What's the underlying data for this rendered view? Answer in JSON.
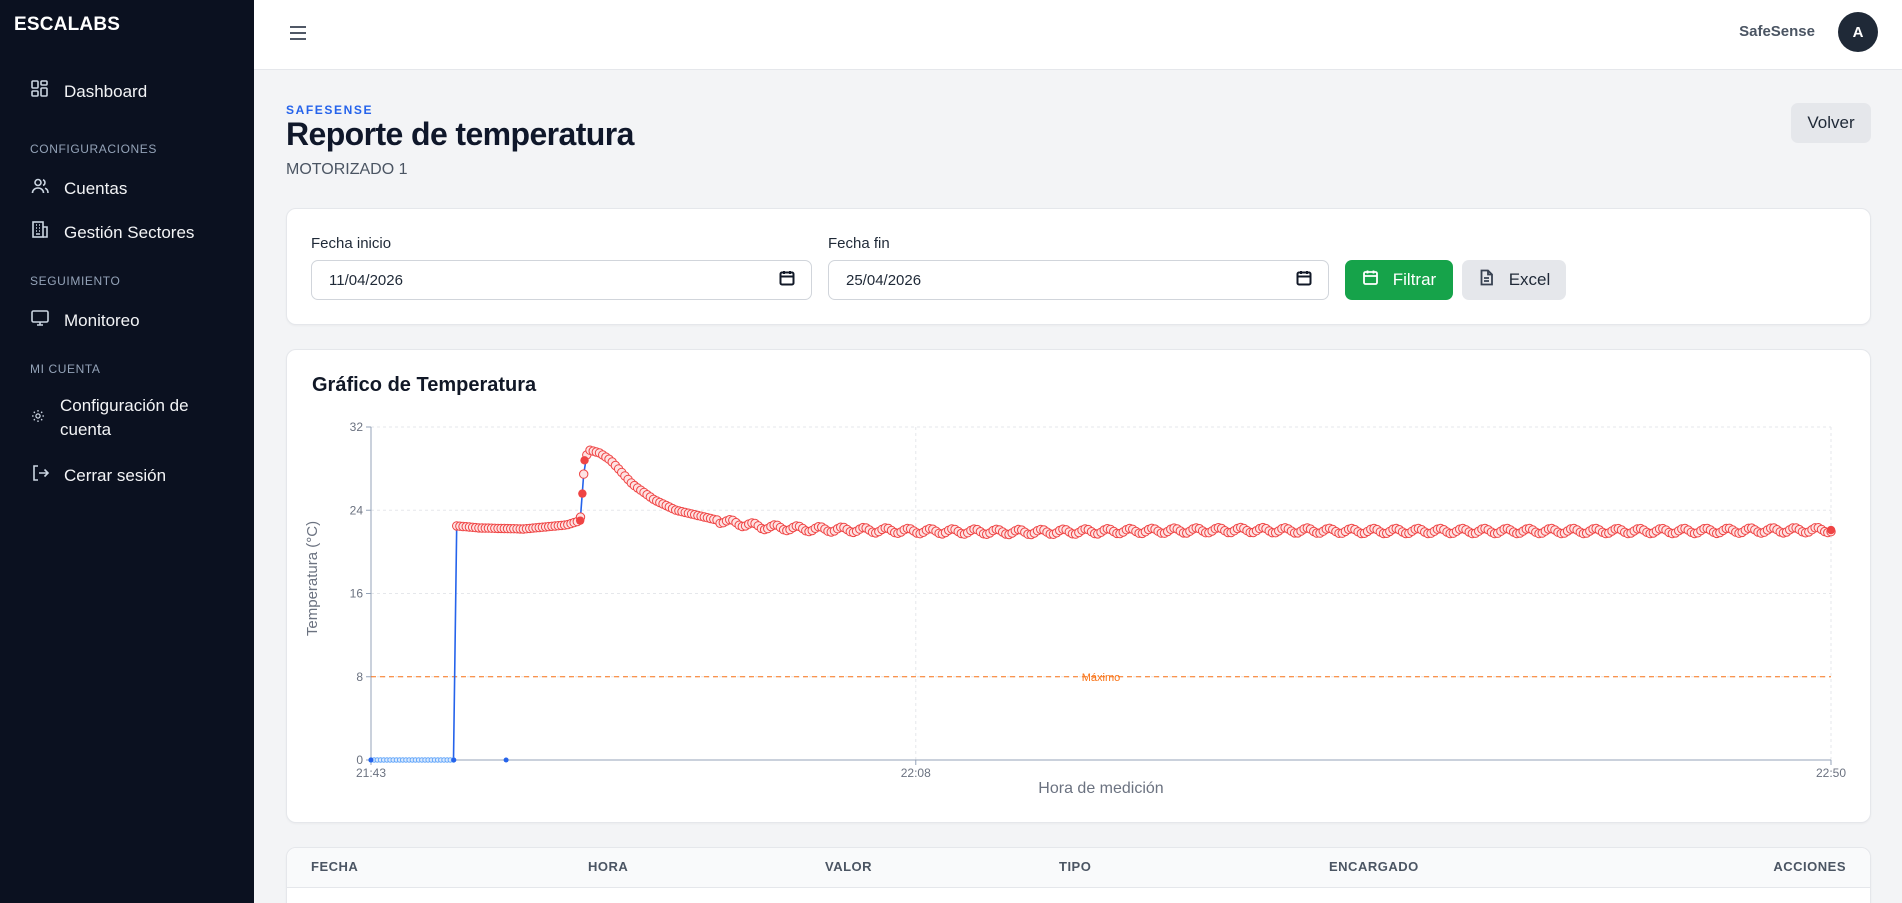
{
  "sidebar": {
    "brand": "ESCALABS",
    "items": {
      "dashboard": "Dashboard",
      "cuentas": "Cuentas",
      "sectores": "Gestión Sectores",
      "monitoreo": "Monitoreo",
      "config": "Configuración de cuenta",
      "logout": "Cerrar sesión"
    },
    "sections": {
      "configuraciones": "CONFIGURACIONES",
      "seguimiento": "SEGUIMIENTO",
      "mi_cuenta": "MI CUENTA"
    }
  },
  "header": {
    "brand": "SafeSense",
    "avatar_initial": "A"
  },
  "page": {
    "eyebrow": "SAFESENSE",
    "title": "Reporte de temperatura",
    "subtitle": "MOTORIZADO 1",
    "back_label": "Volver"
  },
  "filters": {
    "start_label": "Fecha inicio",
    "start_value": "11/04/2026",
    "end_label": "Fecha fin",
    "end_value": "25/04/2026",
    "filter_button": "Filtrar",
    "excel_button": "Excel"
  },
  "chart_card": {
    "title": "Gráfico de Temperatura"
  },
  "chart_data": {
    "type": "line",
    "title": "Gráfico de Temperatura",
    "xlabel": "Hora de medición",
    "ylabel": "Temperatura (°C)",
    "x_tick_labels": [
      "21:43",
      "22:08",
      "22:50"
    ],
    "x_range": [
      "21:43",
      "22:50"
    ],
    "ylim": [
      0,
      32
    ],
    "y_ticks": [
      0,
      8,
      16,
      24,
      32
    ],
    "grid": true,
    "reference_line": {
      "label": "Máximo",
      "value": 8,
      "color": "#f97316"
    },
    "colors": {
      "line": "#2563eb",
      "above_max_point": "#ef4444",
      "below_max_point": "#60a5fa"
    },
    "series": [
      {
        "x_minutes_since_start": [
          0,
          2.5,
          3.8,
          3.9,
          5,
          7,
          9,
          9.6,
          9.7,
          9.8,
          10,
          10.5,
          11,
          12,
          13,
          14,
          16,
          18,
          20,
          25,
          30,
          35,
          40,
          45,
          50,
          55,
          60,
          67
        ],
        "values": [
          0,
          0,
          0,
          22.5,
          22.3,
          22.2,
          22.6,
          23.0,
          25.6,
          28.8,
          29.8,
          29.5,
          28.8,
          26.5,
          25.0,
          24.0,
          23.0,
          22.4,
          22.2,
          22.0,
          21.9,
          22.0,
          22.1,
          22.0,
          22.0,
          22.0,
          22.0,
          22.1
        ]
      }
    ]
  },
  "table": {
    "columns": [
      "FECHA",
      "HORA",
      "VALOR",
      "TIPO",
      "ENCARGADO",
      "ACCIONES"
    ]
  }
}
